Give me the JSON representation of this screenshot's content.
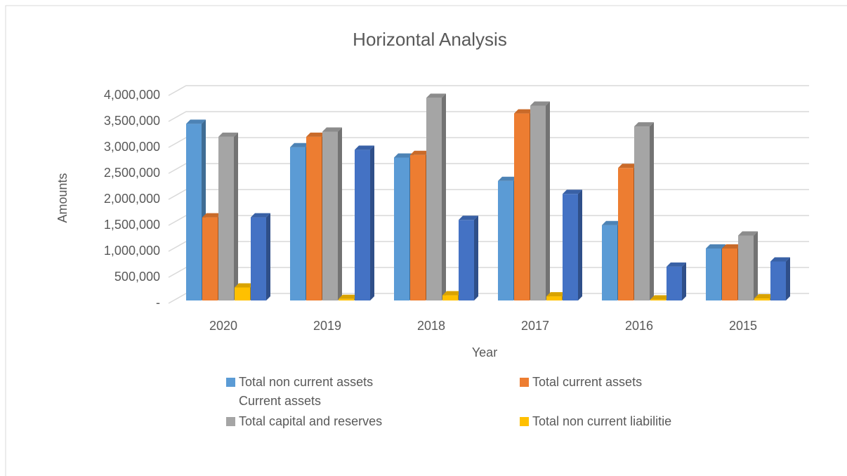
{
  "chart_data": {
    "type": "bar3d",
    "title": "Horizontal Analysis",
    "x_label": "Year",
    "y_label": "Amounts",
    "categories": [
      "2020",
      "2019",
      "2018",
      "2017",
      "2016",
      "2015"
    ],
    "series": [
      {
        "name": "Total non current assets",
        "color": "#5b9bd5",
        "values": [
          3400000,
          2950000,
          2750000,
          2300000,
          1450000,
          1000000
        ]
      },
      {
        "name": "Total current assets",
        "color": "#ed7d31",
        "values": [
          1600000,
          3150000,
          2800000,
          3600000,
          2550000,
          1000000
        ]
      },
      {
        "name": "Total capital and reserves",
        "color": "#a5a5a5",
        "values": [
          3150000,
          3250000,
          3900000,
          3750000,
          3350000,
          1250000
        ]
      },
      {
        "name": "Total non current liabilitie",
        "color": "#ffc000",
        "values": [
          250000,
          30000,
          100000,
          80000,
          20000,
          40000
        ]
      },
      {
        "name": "Current assets",
        "color": "#4472c4",
        "values": [
          1600000,
          2900000,
          1550000,
          2050000,
          650000,
          750000
        ]
      }
    ],
    "ylim": [
      0,
      4000000
    ],
    "yticks": [
      {
        "value": 0,
        "label": "-"
      },
      {
        "value": 500000,
        "label": "500,000"
      },
      {
        "value": 1000000,
        "label": "1,000,000"
      },
      {
        "value": 1500000,
        "label": "1,500,000"
      },
      {
        "value": 2000000,
        "label": "2,000,000"
      },
      {
        "value": 2500000,
        "label": "2,500,000"
      },
      {
        "value": 3000000,
        "label": "3,000,000"
      },
      {
        "value": 3500000,
        "label": "3,500,000"
      },
      {
        "value": 4000000,
        "label": "4,000,000"
      }
    ],
    "grid": true
  }
}
